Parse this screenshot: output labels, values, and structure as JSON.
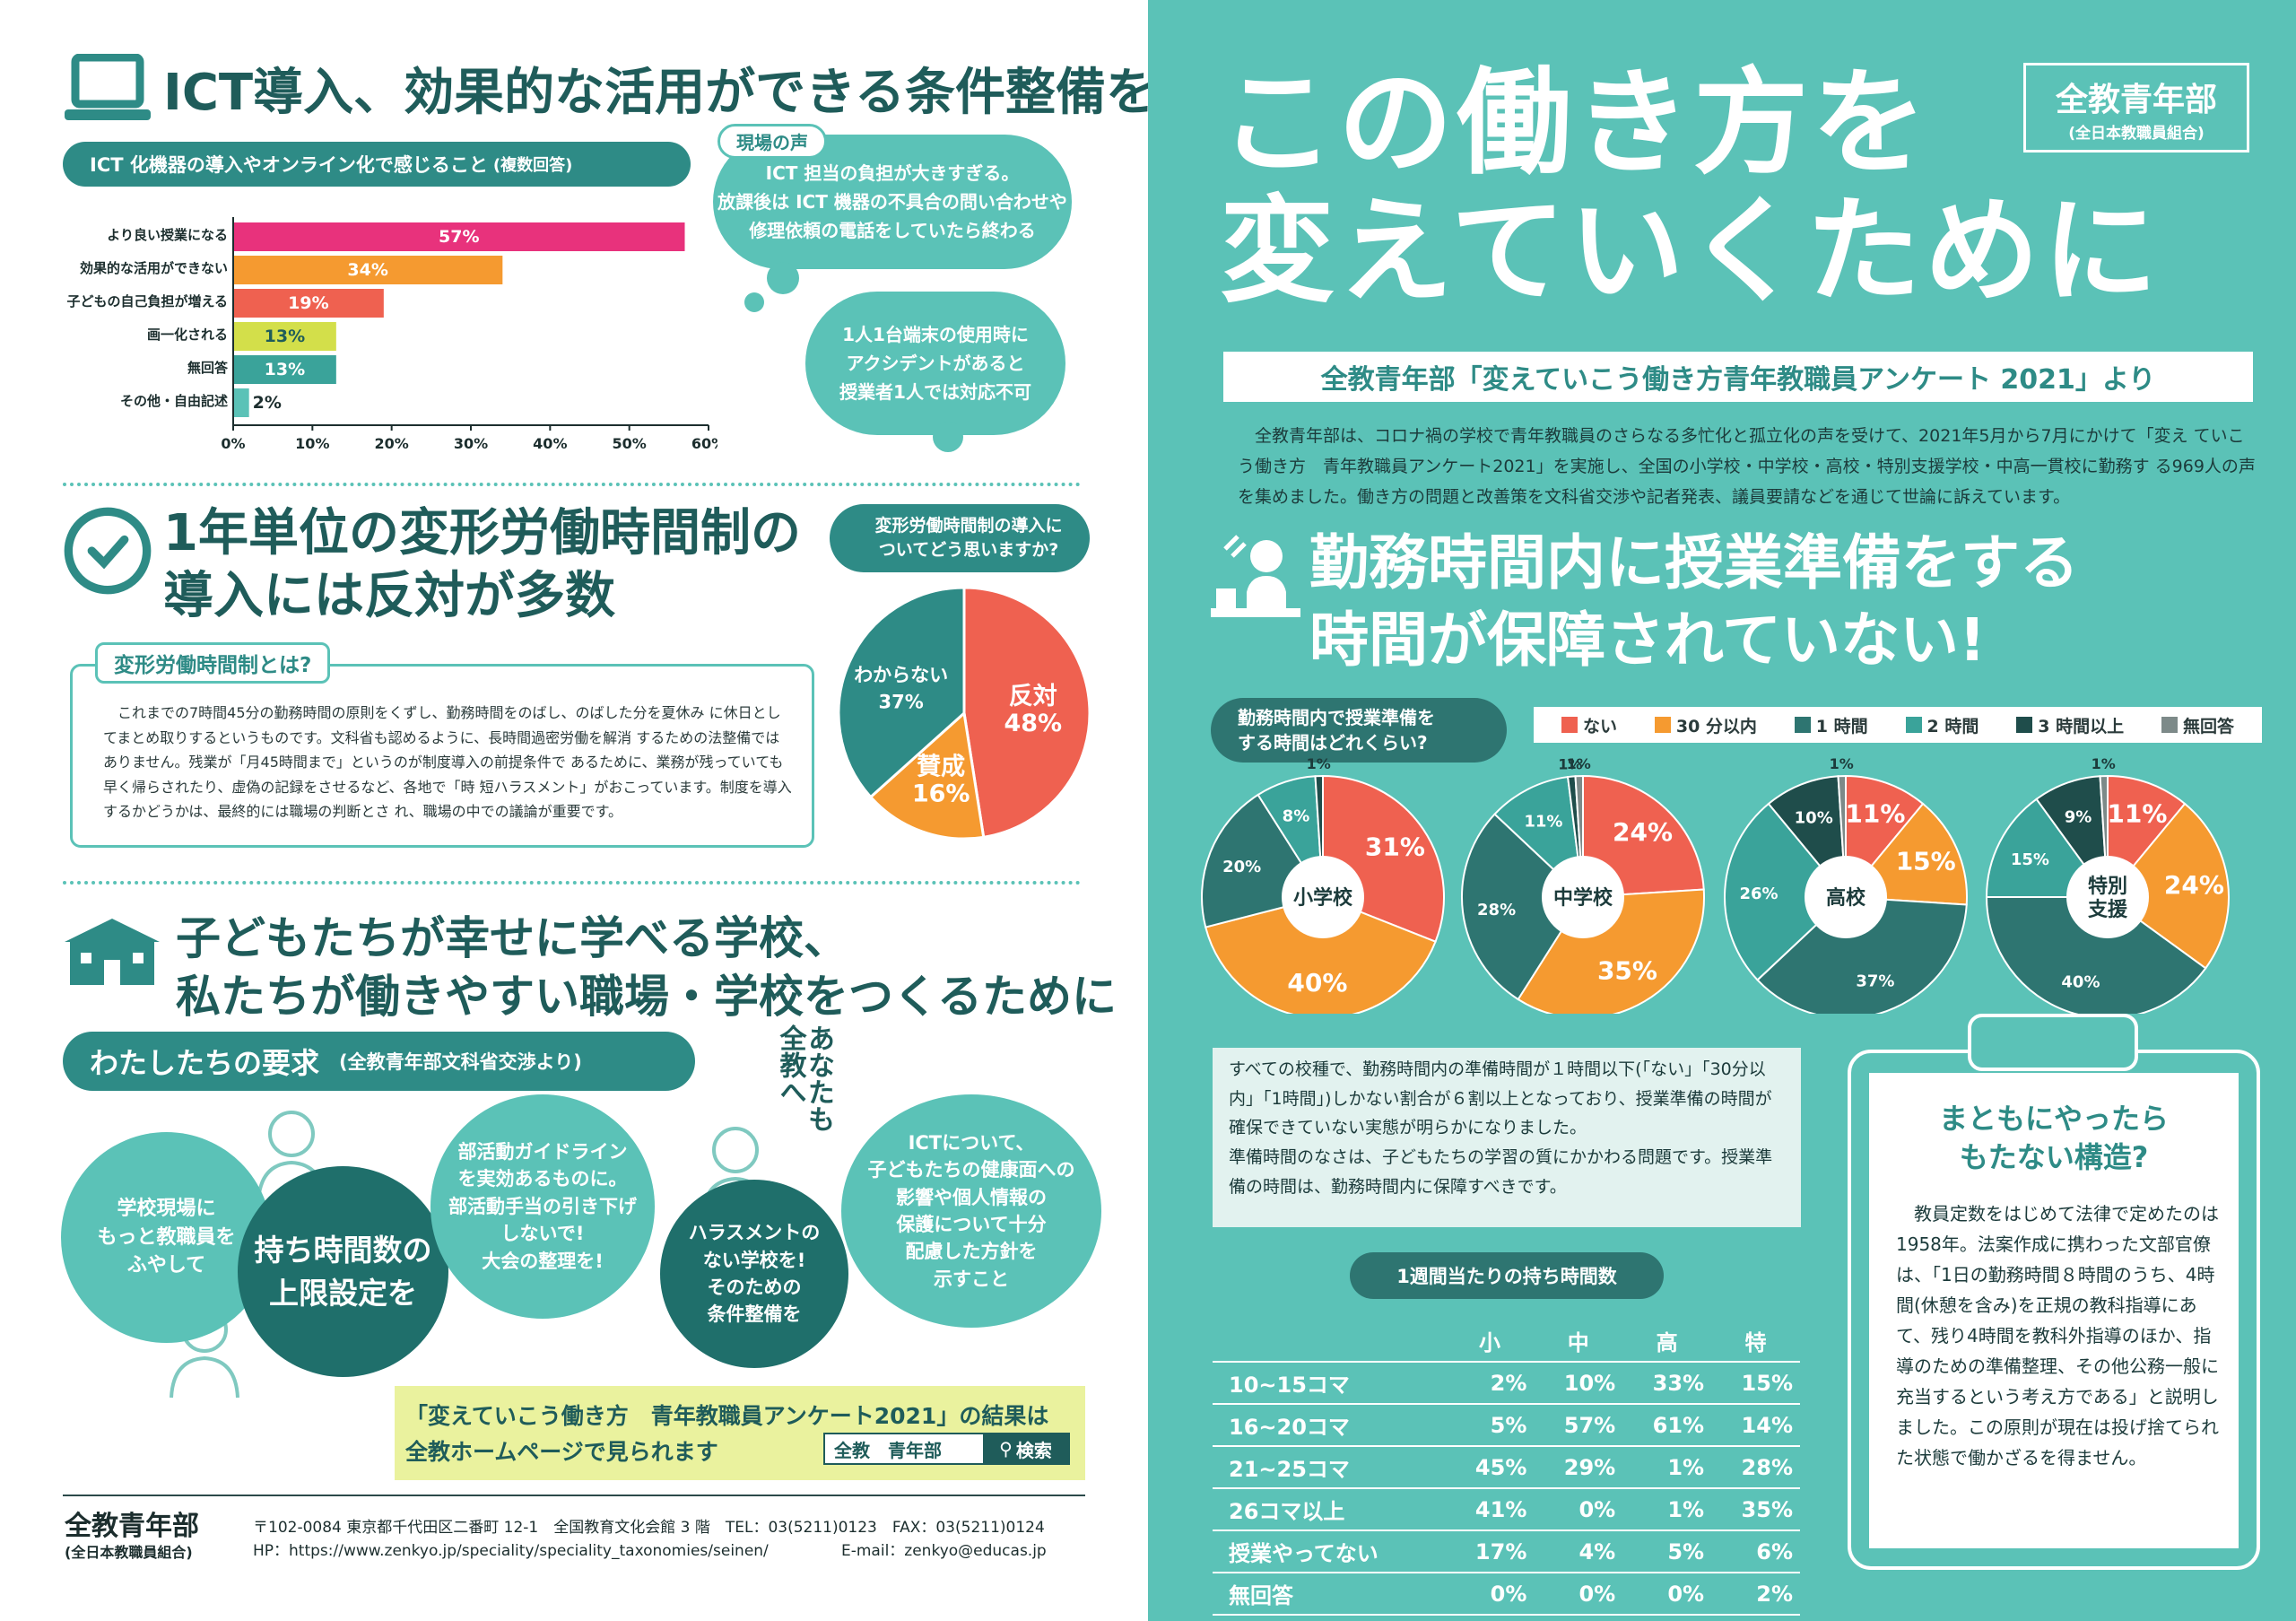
{
  "colors": {
    "teal": "#5bc2b7",
    "dark_teal": "#2e8b86",
    "deep": "#1f5c5a",
    "pink": "#e8327c",
    "orange": "#f59a30",
    "coral": "#ef6150",
    "yellow": "#d3df4a",
    "mid": "#3aa39a"
  },
  "ict": {
    "title": "ICT導入、効果的な活用ができる条件整備を",
    "subtitle": "ICT 化機器の導入やオンライン化で感じること",
    "subtitle_note": "(複数回答)",
    "voice_label": "現場の声",
    "voice1": "ICT 担当の負担が大きすぎる。\n放課後は ICT 機器の不具合の問い合わせや\n修理依頼の電話をしていたら終わる",
    "voice2": "1人1台端末の使用時に\nアクシデントがあると\n授業者1人では対応不可"
  },
  "chart_data": [
    {
      "type": "bar",
      "title": "ICT 化機器の導入やオンライン化で感じること(複数回答)",
      "categories": [
        "より良い授業になる",
        "効果的な活用ができない",
        "子どもの自己負担が増える",
        "画一化される",
        "無回答",
        "その他・自由記述"
      ],
      "values": [
        57,
        34,
        19,
        13,
        13,
        2
      ],
      "labels": [
        "57%",
        "34%",
        "19%",
        "13%",
        "13%",
        "2%"
      ],
      "colors": [
        "#e8327c",
        "#f59a30",
        "#ef6150",
        "#d3df4a",
        "#3aa39a",
        "#5bc2b7"
      ],
      "xticks": [
        "0%",
        "10%",
        "20%",
        "30%",
        "40%",
        "50%",
        "60%"
      ],
      "xlim": [
        0,
        60
      ]
    },
    {
      "type": "pie",
      "title": "変形労働時間制の導入についてどう思いますか?",
      "slices": [
        {
          "label": "反対",
          "value": 48,
          "text": "48%",
          "color": "#ef6150"
        },
        {
          "label": "賛成",
          "value": 16,
          "text": "16%",
          "color": "#f59a30"
        },
        {
          "label": "わからない",
          "value": 37,
          "text": "37%",
          "color": "#2e8b86"
        }
      ]
    },
    {
      "type": "pie",
      "title": "勤務時間内で授業準備をする時間はどれくらい?",
      "legend": [
        "ない",
        "30 分以内",
        "1 時間",
        "2 時間",
        "3 時間以上",
        "無回答"
      ],
      "legend_colors": [
        "#ef6150",
        "#f59a30",
        "#2e7571",
        "#3aa39a",
        "#1f4d4b",
        "#7d8a89"
      ],
      "series": [
        {
          "name": "小学校",
          "values": [
            31,
            40,
            20,
            8,
            1,
            0
          ],
          "labels": [
            "31%",
            "40%",
            "20%",
            "8%",
            "1%",
            ""
          ]
        },
        {
          "name": "中学校",
          "values": [
            24,
            35,
            28,
            11,
            1,
            1
          ],
          "labels": [
            "24%",
            "35%",
            "28%",
            "11%",
            "1%",
            "1%"
          ]
        },
        {
          "name": "高校",
          "values": [
            11,
            15,
            37,
            26,
            10,
            1
          ],
          "labels": [
            "11%",
            "15%",
            "37%",
            "26%",
            "10%",
            "1%"
          ]
        },
        {
          "name": "特別\n支援",
          "values": [
            11,
            24,
            40,
            15,
            9,
            1
          ],
          "labels": [
            "11%",
            "24%",
            "40%",
            "15%",
            "9%",
            "1%"
          ]
        }
      ]
    }
  ],
  "henkei": {
    "title": "1年単位の変形労働時間制の\n導入には反対が多数",
    "box_title": "変形労働時間制とは?",
    "box_text": "これまでの7時間45分の勤務時間の原則をくずし、勤務時間をのばし、のばした分を夏休み に休日としてまとめ取りするというものです。文科省も認めるように、長時間過密労働を解消 するための法整備ではありません。残業が「月45時間まで」というのが制度導入の前提条件で あるために、業務が残っていても早く帰らされたり、虚偽の記録をさせるなど、各地で「時 短ハラスメント」がおこっています。制度を導入するかどうかは、最終的には職場の判断とさ れ、職場の中での議論が重要です。",
    "question": "変形労働時間制の導入に\nついてどう思いますか?"
  },
  "demands": {
    "title": "子どもたちが幸せに学べる学校、\n私たちが働きやすい職場・学校をつくるために",
    "bar": "わたしたちの要求",
    "bar_note": "(全教青年部文科省交渉より)",
    "vertical": "あなたも\n全教へ",
    "items": [
      "学校現場に\nもっと教職員を\nふやして",
      "持ち時間数の\n上限設定を",
      "部活動ガイドライン\nを実効あるものに。\n部活動手当の引き下げ\nしないで!\n大会の整理を!",
      "ハラスメントの\nない学校を!\nそのための\n条件整備を",
      "ICTについて、\n子どもたちの健康面への\n影響や個人情報の\n保護について十分\n配慮した方針を\n示すこと"
    ]
  },
  "notice": {
    "text": "「変えていこう働き方　青年教職員アンケート2021」の結果は\n全教ホームページで見られます",
    "search_value": "全教　青年部",
    "search_button": "検索"
  },
  "footer": {
    "org": "全教青年部",
    "org_sub": "(全日本教職員組合)",
    "address": "〒102-0084 東京都千代田区二番町 12-1　全国教育文化会館 3 階　TEL：03(5211)0123　FAX：03(5211)0124",
    "hp": "HP：https://www.zenkyo.jp/speciality/speciality_taxonomies/seinen/",
    "email": "E-mail：zenkyo@educas.jp"
  },
  "cover": {
    "badge": "全教青年部",
    "badge_sub": "(全日本教職員組合)",
    "headline": "この働き方を\n変えていくために",
    "subhead": "全教青年部「変えていこう働き方青年教職員アンケート 2021」より",
    "intro": "全教青年部は、コロナ禍の学校で青年教職員のさらなる多忙化と孤立化の声を受けて、2021年5月から7月にかけて「変え ていこう働き方　青年教職員アンケート2021」を実施し、全国の小学校・中学校・高校・特別支援学校・中高一貫校に勤務す る969人の声を集めました。働き方の問題と改善策を文科省交渉や記者発表、議員要請などを通じて世論に訴えています。",
    "section_title": "勤務時間内に授業準備をする\n時間が保障されていない!",
    "pie_question": "勤務時間内で授業準備を\nする時間はどれくらい?",
    "summary": "すべての校種で、勤務時間内の準備時間が１時間以下(「ない」「30分以内」「1時間」)しかない割合が６割以上となっており、授業準備の時間が確保できていない実態が明らかになりました。\n準備時間のなさは、子どもたちの学習の質にかかわる問題です。授業準備の時間は、勤務時間内に保障すべきです。",
    "clip_title": "まともにやったら\nもたない構造?",
    "clip_text": "教員定数をはじめて法律で定めたのは1958年。法案作成に携わった文部官僚は、「1日の勤務時間８時間のうち、4時間(休憩を含み)を正規の教科指導にあて、残り4時間を教科外指導のほか、指導のための準備整理、その他公務一般に充当するという考え方である」と説明しました。この原則が現在は投げ捨てられた状態で働かざるを得ません。"
  },
  "hours_table": {
    "title": "1週間当たりの持ち時間数",
    "headers": [
      "",
      "小",
      "中",
      "高",
      "特"
    ],
    "rows": [
      [
        "10~15コマ",
        "2%",
        "10%",
        "33%",
        "15%"
      ],
      [
        "16~20コマ",
        "5%",
        "57%",
        "61%",
        "14%"
      ],
      [
        "21~25コマ",
        "45%",
        "29%",
        "1%",
        "28%"
      ],
      [
        "26コマ以上",
        "41%",
        "0%",
        "1%",
        "35%"
      ],
      [
        "授業やってない",
        "17%",
        "4%",
        "5%",
        "6%"
      ],
      [
        "無回答",
        "0%",
        "0%",
        "0%",
        "2%"
      ]
    ]
  }
}
